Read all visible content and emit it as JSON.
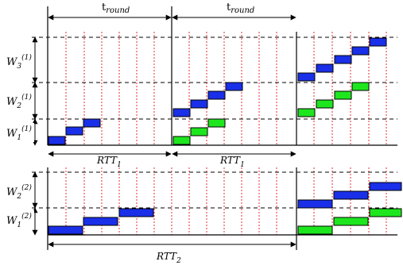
{
  "top": {
    "t_round_1": "t",
    "t_round_1_sub": "round",
    "t_round_2": "t",
    "t_round_2_sub": "round",
    "w3": "W",
    "w3_sub": "3",
    "w3_sup": "(1)",
    "w2": "W",
    "w2_sub": "2",
    "w2_sup": "(1)",
    "w1": "W",
    "w1_sub": "1",
    "w1_sup": "(1)",
    "rtt_a": "RTT",
    "rtt_a_sub": "1",
    "rtt_b": "RTT",
    "rtt_b_sub": "1"
  },
  "bottom": {
    "w2": "W",
    "w2_sub": "2",
    "w2_sup": "(2)",
    "w1": "W",
    "w1_sub": "1",
    "w1_sup": "(2)",
    "rtt": "RTT",
    "rtt_sub": "2"
  },
  "colors": {
    "blue": "#1a2fe8",
    "green": "#1ee61e",
    "red_grid": "#e03030",
    "line": "#000000"
  }
}
